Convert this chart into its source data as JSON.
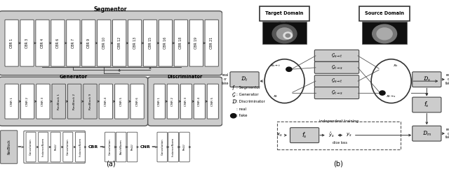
{
  "title_a": "(a)",
  "title_b": "(b)",
  "segmentor_label": "Segmentor",
  "generator_label": "Generator",
  "discriminator_label": "Discriminator",
  "segmentor_boxes": [
    "CBR 1",
    "CBR 3",
    "CBR 4",
    "CBR 6",
    "CBR 7",
    "CBR 9",
    "CBR 10",
    "CBR 12",
    "CBR 13",
    "CBR 15",
    "CBR 16",
    "CBR 18",
    "CBR 19",
    "CBR 21"
  ],
  "generator_boxes": [
    "CNR 1",
    "CNR 2",
    "CNR 3",
    "ResBlock 1",
    "ResBlock 2",
    "ResBlock 9",
    "CNR 4",
    "CNR 5",
    "CNR 6"
  ],
  "discriminator_boxes": [
    "CNR 1",
    "CNR 2",
    "CNR 3",
    "CNR 4",
    "CNR 5"
  ],
  "resblock_inner": [
    "Convolution",
    "InstanceNorm",
    "ReLU",
    "Convolution",
    "InstanceNorm"
  ],
  "cbr_inner": [
    "Convolution",
    "BatchNorm",
    "ReLU"
  ],
  "cnr_inner": [
    "Convolution",
    "InstanceNorm",
    "ReLU"
  ],
  "group_gray": "#cccccc",
  "box_face": "#ffffff",
  "box_edge": "#555555",
  "gen_box_face": "#bbbbbb"
}
